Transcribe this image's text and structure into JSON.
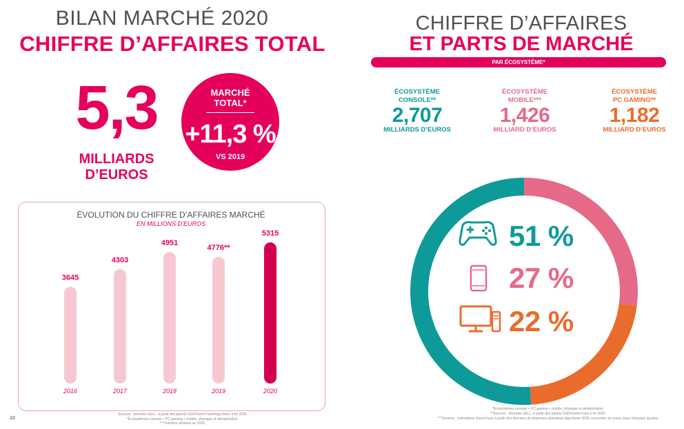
{
  "left": {
    "title_line1": "BILAN MARCHÉ 2020",
    "title_line2": "CHIFFRE D’AFFAIRES TOTAL",
    "big_value": "5,3",
    "big_unit_line1": "MILLIARDS",
    "big_unit_line2": "D’EUROS",
    "circle": {
      "label_line1": "MARCHÉ",
      "label_line2": "TOTAL*",
      "growth": "+11,3 %",
      "vs": "VS 2019"
    },
    "sources": [
      "Sources : données SELL, à partir des panels GSD/GameTrack/App Annie à fin 2020.",
      "*Écosystèmes console + PC gaming + mobile, physique et dématérialisé.",
      "** Données révisées en 2020."
    ],
    "page_number": "10"
  },
  "chart_data": [
    {
      "type": "bar",
      "title": "ÉVOLUTION DU CHIFFRE D’AFFAIRES MARCHÉ",
      "subtitle": "EN MILLIONS D’EUROS",
      "categories": [
        "2016",
        "2017",
        "2018",
        "2019",
        "2020"
      ],
      "values": [
        3645,
        4303,
        4951,
        4776,
        5315
      ],
      "value_labels": [
        "3645",
        "4303",
        "4951",
        "4776**",
        "5315"
      ],
      "ylim": [
        0,
        5315
      ],
      "colors": {
        "bar": "#f6c9d1",
        "highlight": "#d4004f",
        "label": "#e5005b"
      },
      "highlight_index": 4
    },
    {
      "type": "pie",
      "variant": "donut",
      "categories": [
        "Console",
        "Mobile",
        "PC gaming"
      ],
      "values": [
        51,
        27,
        22
      ],
      "labels": [
        "51 %",
        "27 %",
        "22 %"
      ],
      "colors": [
        "#0f9a9a",
        "#e56a87",
        "#ea6c2c"
      ]
    }
  ],
  "right": {
    "title_line1": "CHIFFRE D’AFFAIRES",
    "title_line2": "ET PARTS DE MARCHÉ",
    "pill": "PAR ÉCOSYSTÈME*",
    "ecosystems": [
      {
        "label_line1": "ÉCOSYSTÈME",
        "label_line2": "CONSOLE**",
        "value": "2,707",
        "unit": "MILLIARDS D’EUROS"
      },
      {
        "label_line1": "ÉCOSYSTÈME",
        "label_line2": "MOBILE***",
        "value": "1,426",
        "unit": "MILLIARD D’EUROS"
      },
      {
        "label_line1": "ÉCOSYSTÈME",
        "label_line2": "PC GAMING**",
        "value": "1,182",
        "unit": "MILLIARD D’EUROS"
      }
    ],
    "icons": [
      "gamepad-icon",
      "smartphone-icon",
      "desktop-computer-icon"
    ],
    "sources": [
      "*Écosystèmes console + PC gaming + mobile, physique et dématérialisé.",
      "**Sources : données SELL, à partir des panels GSD/GameTrack à fin 2020.",
      "***Sources : estimations GameTrack à partir des données de dépenses utilisateurs App Annie 2020, converties en euros, base française ajustée."
    ]
  }
}
